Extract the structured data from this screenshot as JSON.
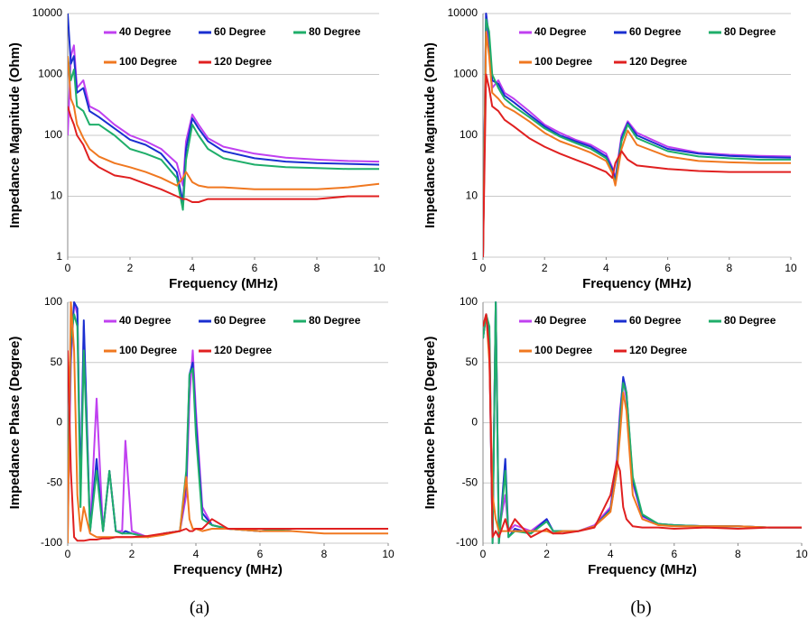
{
  "chart_data": [
    {
      "type": "line",
      "x_label": "Frequency (MHz)",
      "y_label": "Impedance Magnitude (Ohm)",
      "log_y": true,
      "grid": true,
      "xlim": [
        0,
        10
      ],
      "xticks": [
        0,
        2,
        4,
        6,
        8,
        10
      ],
      "ylim": [
        1,
        10000
      ],
      "yticks": [
        1,
        10,
        100,
        1000,
        10000
      ],
      "x": [
        0,
        0.1,
        0.2,
        0.3,
        0.5,
        0.7,
        1,
        1.5,
        2,
        2.5,
        3,
        3.5,
        3.7,
        3.8,
        4,
        4.2,
        4.5,
        5,
        6,
        7,
        8,
        9,
        10
      ],
      "series": [
        {
          "name": "40 Degree",
          "color": "#c040f0",
          "values": [
            100,
            2000,
            3000,
            600,
            800,
            300,
            250,
            150,
            100,
            80,
            60,
            35,
            15,
            80,
            220,
            150,
            90,
            65,
            50,
            43,
            40,
            38,
            37
          ]
        },
        {
          "name": "60 Degree",
          "color": "#1a2fd0",
          "values": [
            10000,
            1500,
            2000,
            500,
            600,
            250,
            200,
            130,
            85,
            70,
            50,
            25,
            8,
            60,
            190,
            130,
            80,
            55,
            42,
            37,
            35,
            34,
            33
          ]
        },
        {
          "name": "80 Degree",
          "color": "#1fae6a",
          "values": [
            2000,
            800,
            1200,
            300,
            250,
            150,
            150,
            100,
            60,
            50,
            40,
            20,
            6,
            40,
            150,
            100,
            60,
            42,
            33,
            30,
            29,
            28,
            28
          ]
        },
        {
          "name": "100 Degree",
          "color": "#f07820",
          "values": [
            2000,
            400,
            300,
            150,
            90,
            60,
            45,
            35,
            30,
            25,
            20,
            15,
            20,
            25,
            17,
            15,
            14,
            14,
            13,
            13,
            13,
            14,
            16
          ]
        },
        {
          "name": "120 Degree",
          "color": "#e02020",
          "values": [
            300,
            200,
            150,
            100,
            70,
            40,
            30,
            22,
            20,
            16,
            13,
            10,
            9,
            9,
            8,
            8,
            9,
            9,
            9,
            9,
            9,
            10,
            10
          ]
        }
      ]
    },
    {
      "type": "line",
      "x_label": "Frequency (MHz)",
      "y_label": "Impedance Magnitude (Ohm)",
      "log_y": true,
      "grid": true,
      "xlim": [
        0,
        10
      ],
      "xticks": [
        0,
        2,
        4,
        6,
        8,
        10
      ],
      "ylim": [
        1,
        10000
      ],
      "yticks": [
        1,
        10,
        100,
        1000,
        10000
      ],
      "x": [
        0,
        0.1,
        0.2,
        0.3,
        0.5,
        0.7,
        1,
        1.5,
        2,
        2.5,
        3,
        3.5,
        4,
        4.2,
        4.3,
        4.5,
        4.7,
        5,
        6,
        7,
        8,
        9,
        10
      ],
      "series": [
        {
          "name": "40 Degree",
          "color": "#c040f0",
          "values": [
            1,
            10000,
            3000,
            600,
            800,
            500,
            400,
            250,
            150,
            110,
            85,
            70,
            50,
            30,
            20,
            100,
            170,
            110,
            65,
            52,
            48,
            46,
            45
          ]
        },
        {
          "name": "60 Degree",
          "color": "#1a2fd0",
          "values": [
            1,
            10000,
            4000,
            800,
            700,
            450,
            350,
            220,
            140,
            100,
            80,
            65,
            45,
            28,
            18,
            90,
            160,
            100,
            60,
            50,
            46,
            44,
            43
          ]
        },
        {
          "name": "80 Degree",
          "color": "#1fae6a",
          "values": [
            1,
            8000,
            5000,
            1000,
            600,
            400,
            300,
            200,
            130,
            95,
            75,
            60,
            42,
            25,
            16,
            80,
            150,
            90,
            55,
            45,
            42,
            40,
            40
          ]
        },
        {
          "name": "100 Degree",
          "color": "#f07820",
          "values": [
            1,
            5000,
            2000,
            500,
            400,
            300,
            250,
            170,
            110,
            80,
            65,
            52,
            38,
            24,
            15,
            60,
            120,
            70,
            45,
            38,
            36,
            35,
            35
          ]
        },
        {
          "name": "120 Degree",
          "color": "#e02020",
          "values": [
            1,
            1000,
            600,
            300,
            250,
            180,
            140,
            90,
            65,
            50,
            40,
            32,
            25,
            20,
            35,
            55,
            40,
            32,
            28,
            26,
            25,
            25,
            25
          ]
        }
      ]
    },
    {
      "type": "line",
      "x_label": "Frequency (MHz)",
      "y_label": "Impedance Phase (Degree)",
      "log_y": false,
      "grid": true,
      "xlim": [
        0,
        10
      ],
      "xticks": [
        0,
        2,
        4,
        6,
        8,
        10
      ],
      "ylim": [
        -100,
        100
      ],
      "yticks": [
        -100,
        -50,
        0,
        50,
        100
      ],
      "x": [
        0,
        0.1,
        0.2,
        0.3,
        0.4,
        0.5,
        0.7,
        0.9,
        1.1,
        1.3,
        1.5,
        1.7,
        1.8,
        2,
        2.5,
        3,
        3.5,
        3.7,
        3.8,
        3.9,
        4,
        4.2,
        4.5,
        5,
        6,
        7,
        8,
        9,
        10
      ],
      "series": [
        {
          "name": "40 Degree",
          "color": "#c040f0",
          "values": [
            -90,
            50,
            100,
            90,
            -60,
            80,
            -90,
            20,
            -90,
            -40,
            -90,
            -90,
            -15,
            -90,
            -95,
            -92,
            -90,
            -60,
            20,
            60,
            10,
            -70,
            -85,
            -88,
            -90,
            -88,
            -88,
            -88,
            -88
          ]
        },
        {
          "name": "60 Degree",
          "color": "#1a2fd0",
          "values": [
            -50,
            60,
            100,
            95,
            -60,
            85,
            -90,
            -30,
            -90,
            -40,
            -90,
            -92,
            -90,
            -92,
            -95,
            -92,
            -90,
            -50,
            40,
            50,
            0,
            -75,
            -85,
            -88,
            -90,
            -88,
            -88,
            -88,
            -88
          ]
        },
        {
          "name": "80 Degree",
          "color": "#1fae6a",
          "values": [
            -50,
            70,
            90,
            80,
            -70,
            60,
            -90,
            -40,
            -90,
            -40,
            -90,
            -92,
            -92,
            -92,
            -95,
            -92,
            -90,
            -40,
            40,
            45,
            -10,
            -80,
            -85,
            -88,
            -90,
            -88,
            -88,
            -88,
            -88
          ]
        },
        {
          "name": "100 Degree",
          "color": "#f07820",
          "values": [
            -100,
            100,
            60,
            -60,
            -90,
            -70,
            -92,
            -95,
            -95,
            -95,
            -95,
            -95,
            -95,
            -95,
            -95,
            -93,
            -90,
            -45,
            -80,
            -88,
            -88,
            -90,
            -88,
            -88,
            -90,
            -90,
            -92,
            -92,
            -92
          ]
        },
        {
          "name": "120 Degree",
          "color": "#e02020",
          "values": [
            60,
            -40,
            -95,
            -98,
            -98,
            -98,
            -97,
            -97,
            -96,
            -96,
            -95,
            -95,
            -95,
            -95,
            -94,
            -92,
            -90,
            -88,
            -90,
            -90,
            -88,
            -88,
            -80,
            -88,
            -88,
            -88,
            -88,
            -88,
            -88
          ]
        }
      ]
    },
    {
      "type": "line",
      "x_label": "Frequency (MHz)",
      "y_label": "Impedance Phase (Degree)",
      "log_y": false,
      "grid": true,
      "xlim": [
        0,
        10
      ],
      "xticks": [
        0,
        2,
        4,
        6,
        8,
        10
      ],
      "ylim": [
        -100,
        100
      ],
      "yticks": [
        -100,
        -50,
        0,
        50,
        100
      ],
      "x": [
        0,
        0.1,
        0.2,
        0.3,
        0.4,
        0.5,
        0.7,
        0.8,
        1,
        1.5,
        2,
        2.2,
        2.5,
        3,
        3.5,
        4,
        4.2,
        4.3,
        4.4,
        4.5,
        4.7,
        5,
        5.5,
        6,
        7,
        8,
        9,
        10
      ],
      "series": [
        {
          "name": "40 Degree",
          "color": "#c040f0",
          "values": [
            70,
            90,
            60,
            -90,
            100,
            -90,
            -60,
            -90,
            -85,
            -90,
            -80,
            -90,
            -90,
            -90,
            -85,
            -70,
            -30,
            10,
            35,
            20,
            -50,
            -78,
            -84,
            -85,
            -86,
            -86,
            -87,
            -87
          ]
        },
        {
          "name": "60 Degree",
          "color": "#1a2fd0",
          "values": [
            70,
            90,
            70,
            -100,
            100,
            -100,
            -30,
            -95,
            -88,
            -92,
            -80,
            -90,
            -90,
            -90,
            -86,
            -72,
            -35,
            5,
            38,
            25,
            -48,
            -77,
            -84,
            -85,
            -86,
            -86,
            -87,
            -87
          ]
        },
        {
          "name": "80 Degree",
          "color": "#1fae6a",
          "values": [
            70,
            90,
            80,
            -100,
            100,
            -100,
            -40,
            -95,
            -90,
            -92,
            -82,
            -90,
            -90,
            -90,
            -86,
            -73,
            -40,
            0,
            33,
            25,
            -45,
            -76,
            -84,
            -85,
            -86,
            -86,
            -87,
            -87
          ]
        },
        {
          "name": "100 Degree",
          "color": "#f07820",
          "values": [
            80,
            90,
            50,
            -60,
            -80,
            -90,
            -90,
            -90,
            -90,
            -90,
            -90,
            -92,
            -90,
            -90,
            -86,
            -74,
            -40,
            -10,
            25,
            10,
            -60,
            -80,
            -85,
            -86,
            -86,
            -86,
            -87,
            -87
          ]
        },
        {
          "name": "120 Degree",
          "color": "#e02020",
          "values": [
            80,
            90,
            60,
            -95,
            -90,
            -95,
            -80,
            -90,
            -80,
            -95,
            -88,
            -92,
            -92,
            -90,
            -87,
            -60,
            -32,
            -40,
            -70,
            -80,
            -86,
            -87,
            -87,
            -88,
            -87,
            -88,
            -87,
            -87
          ]
        }
      ]
    }
  ],
  "captions": [
    "(a)",
    "(b)"
  ]
}
